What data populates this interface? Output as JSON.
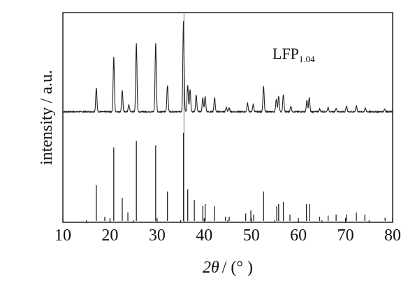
{
  "chart_data": {
    "type": "line",
    "ylabel": "intensity / a.u.",
    "xlabel": {
      "symbol": "2θ",
      "unit": "/ (°  )"
    },
    "xlim": [
      10,
      80
    ],
    "x_ticks": [
      "10",
      "20",
      "30",
      "40",
      "50",
      "60",
      "70",
      "80"
    ],
    "y_ticks": "none",
    "grid": false,
    "annotation": {
      "main": "LFP",
      "subscript": "1.04"
    },
    "reference_line_x": 35.7,
    "series": [
      {
        "kind": "experimental-pattern",
        "baseline": 0.07,
        "peaks": [
          {
            "x": 17.1,
            "h": 0.34
          },
          {
            "x": 20.8,
            "h": 0.78
          },
          {
            "x": 22.6,
            "h": 0.3
          },
          {
            "x": 24.0,
            "h": 0.1
          },
          {
            "x": 25.6,
            "h": 0.98
          },
          {
            "x": 29.7,
            "h": 0.98
          },
          {
            "x": 32.2,
            "h": 0.38
          },
          {
            "x": 35.6,
            "h": 1.3
          },
          {
            "x": 36.5,
            "h": 0.38
          },
          {
            "x": 37.0,
            "h": 0.32
          },
          {
            "x": 38.3,
            "h": 0.24
          },
          {
            "x": 39.7,
            "h": 0.2
          },
          {
            "x": 40.2,
            "h": 0.22
          },
          {
            "x": 42.2,
            "h": 0.2
          },
          {
            "x": 44.7,
            "h": 0.06
          },
          {
            "x": 45.3,
            "h": 0.05
          },
          {
            "x": 49.2,
            "h": 0.12
          },
          {
            "x": 50.4,
            "h": 0.1
          },
          {
            "x": 52.6,
            "h": 0.36
          },
          {
            "x": 55.3,
            "h": 0.18
          },
          {
            "x": 55.8,
            "h": 0.22
          },
          {
            "x": 56.8,
            "h": 0.24
          },
          {
            "x": 58.4,
            "h": 0.08
          },
          {
            "x": 61.8,
            "h": 0.16
          },
          {
            "x": 62.3,
            "h": 0.2
          },
          {
            "x": 64.5,
            "h": 0.04
          },
          {
            "x": 66.3,
            "h": 0.06
          },
          {
            "x": 68.0,
            "h": 0.05
          },
          {
            "x": 70.2,
            "h": 0.08
          },
          {
            "x": 72.3,
            "h": 0.08
          },
          {
            "x": 74.2,
            "h": 0.05
          },
          {
            "x": 78.3,
            "h": 0.04
          }
        ]
      },
      {
        "kind": "reference-stick-pattern",
        "sticks": [
          {
            "x": 17.1,
            "h": 0.34
          },
          {
            "x": 18.9,
            "h": 0.04
          },
          {
            "x": 20.8,
            "h": 0.7
          },
          {
            "x": 22.6,
            "h": 0.22
          },
          {
            "x": 23.8,
            "h": 0.08
          },
          {
            "x": 25.6,
            "h": 0.76
          },
          {
            "x": 29.7,
            "h": 0.72
          },
          {
            "x": 32.2,
            "h": 0.28
          },
          {
            "x": 35.6,
            "h": 0.84
          },
          {
            "x": 36.5,
            "h": 0.3
          },
          {
            "x": 37.9,
            "h": 0.2
          },
          {
            "x": 39.7,
            "h": 0.14
          },
          {
            "x": 40.2,
            "h": 0.16
          },
          {
            "x": 42.2,
            "h": 0.14
          },
          {
            "x": 44.5,
            "h": 0.04
          },
          {
            "x": 45.3,
            "h": 0.04
          },
          {
            "x": 48.8,
            "h": 0.07
          },
          {
            "x": 49.9,
            "h": 0.1
          },
          {
            "x": 50.5,
            "h": 0.06
          },
          {
            "x": 52.6,
            "h": 0.28
          },
          {
            "x": 55.4,
            "h": 0.14
          },
          {
            "x": 55.8,
            "h": 0.16
          },
          {
            "x": 56.8,
            "h": 0.18
          },
          {
            "x": 58.2,
            "h": 0.06
          },
          {
            "x": 61.7,
            "h": 0.16
          },
          {
            "x": 62.4,
            "h": 0.16
          },
          {
            "x": 64.5,
            "h": 0.04
          },
          {
            "x": 66.3,
            "h": 0.05
          },
          {
            "x": 68.0,
            "h": 0.06
          },
          {
            "x": 70.2,
            "h": 0.06
          },
          {
            "x": 72.3,
            "h": 0.08
          },
          {
            "x": 74.1,
            "h": 0.06
          },
          {
            "x": 78.4,
            "h": 0.03
          }
        ]
      }
    ]
  }
}
